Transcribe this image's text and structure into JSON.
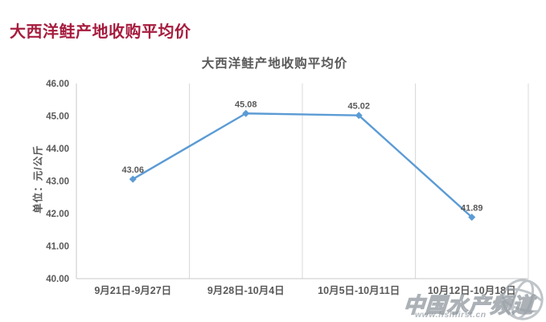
{
  "page_title": "大西洋鲑产地收购平均价",
  "chart_data": {
    "type": "line",
    "title": "大西洋鲑产地收购平均价",
    "xlabel": "",
    "ylabel": "单位：元/公斤",
    "categories": [
      "9月21日-9月27日",
      "9月28日-10月4日",
      "10月5日-10月11日",
      "10月12日-10月18日"
    ],
    "values": [
      43.06,
      45.08,
      45.02,
      41.89
    ],
    "data_labels": [
      "43.06",
      "45.08",
      "45.02",
      "41.89"
    ],
    "ylim": [
      40,
      46
    ],
    "ytick_step": 1,
    "ytick_labels": [
      "40.00",
      "41.00",
      "42.00",
      "43.00",
      "44.00",
      "45.00",
      "46.00"
    ],
    "grid": "vertical",
    "legend": "none",
    "marker": "diamond",
    "line_color": "#5B9BD5"
  },
  "watermark": {
    "brand": "中国水产频道",
    "url": "www.fishfirst.cn",
    "icon": "globe-icon"
  },
  "colors": {
    "page_title": "#A61C3E",
    "chart_title": "#595959",
    "axis_text": "#595959",
    "grid_line": "#D9D9D9",
    "axis_line": "#C9C9C9",
    "line": "#5B9BD5",
    "watermark_gray": "#949BA2"
  }
}
